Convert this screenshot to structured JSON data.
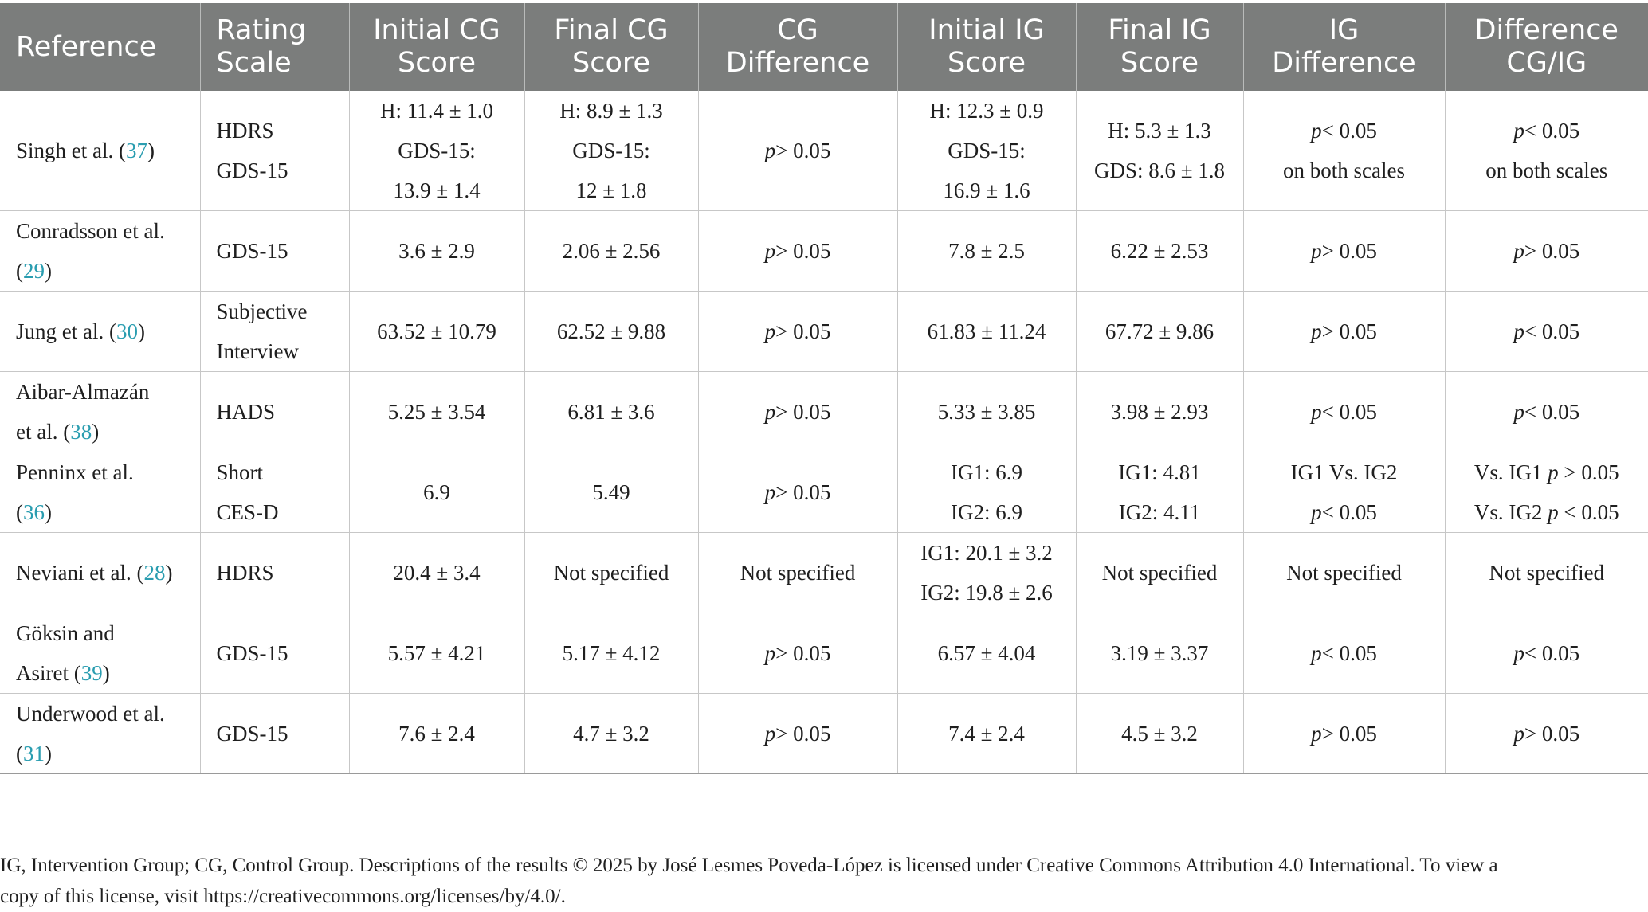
{
  "headers": [
    [
      "Reference"
    ],
    [
      "Rating",
      "Scale"
    ],
    [
      "Initial CG",
      "Score"
    ],
    [
      "Final CG",
      "Score"
    ],
    [
      "CG",
      "Difference"
    ],
    [
      "Initial IG",
      "Score"
    ],
    [
      "Final IG",
      "Score"
    ],
    [
      "IG",
      "Difference"
    ],
    [
      "Difference",
      "CG/IG"
    ]
  ],
  "rows": [
    {
      "ref_text": "Singh et al. (",
      "ref_num": "37",
      "ref_close": ")",
      "scale": [
        "HDRS",
        "GDS-15"
      ],
      "initial_cg": [
        "H: 11.4 ± 1.0",
        "GDS-15:",
        "13.9 ± 1.4"
      ],
      "final_cg": [
        "H: 8.9 ± 1.3",
        "GDS-15:",
        "12 ± 1.8"
      ],
      "cg_diff": "> 0.05",
      "initial_ig": [
        "H: 12.3 ± 0.9",
        "GDS-15:",
        "16.9 ± 1.6"
      ],
      "final_ig": [
        "H: 5.3 ± 1.3",
        "GDS: 8.6 ± 1.8"
      ],
      "ig_diff": [
        "< 0.05",
        "on both scales"
      ],
      "cgig_diff": [
        "< 0.05",
        "on both scales"
      ]
    },
    {
      "ref_text": "Conradsson et al.",
      "ref_text2": "(",
      "ref_num": "29",
      "ref_close": ")",
      "scale": [
        "GDS-15"
      ],
      "initial_cg": [
        "3.6 ± 2.9"
      ],
      "final_cg": [
        "2.06 ± 2.56"
      ],
      "cg_diff": "> 0.05",
      "initial_ig": [
        "7.8 ± 2.5"
      ],
      "final_ig": [
        "6.22 ± 2.53"
      ],
      "ig_diff": [
        "> 0.05"
      ],
      "cgig_diff": [
        "> 0.05"
      ]
    },
    {
      "ref_text": "Jung et al. (",
      "ref_num": "30",
      "ref_close": ")",
      "scale": [
        "Subjective",
        "Interview"
      ],
      "initial_cg": [
        "63.52 ± 10.79"
      ],
      "final_cg": [
        "62.52 ± 9.88"
      ],
      "cg_diff": "> 0.05",
      "initial_ig": [
        "61.83 ± 11.24"
      ],
      "final_ig": [
        "67.72 ± 9.86"
      ],
      "ig_diff": [
        "> 0.05"
      ],
      "cgig_diff": [
        "< 0.05"
      ]
    },
    {
      "ref_text": "Aibar-Almazán",
      "ref_text2": "et al. (",
      "ref_num": "38",
      "ref_close": ")",
      "scale": [
        "HADS"
      ],
      "initial_cg": [
        "5.25 ± 3.54"
      ],
      "final_cg": [
        "6.81 ± 3.6"
      ],
      "cg_diff": "> 0.05",
      "initial_ig": [
        "5.33 ± 3.85"
      ],
      "final_ig": [
        "3.98 ± 2.93"
      ],
      "ig_diff": [
        "< 0.05"
      ],
      "cgig_diff": [
        "< 0.05"
      ]
    },
    {
      "ref_text": "Penninx et al.",
      "ref_text2": "(",
      "ref_num": "36",
      "ref_close": ")",
      "scale": [
        "Short",
        "CES-D"
      ],
      "initial_cg": [
        "6.9"
      ],
      "final_cg": [
        "5.49"
      ],
      "cg_diff": "> 0.05",
      "initial_ig": [
        "IG1: 6.9",
        "IG2: 6.9"
      ],
      "final_ig": [
        "IG1: 4.81",
        "IG2: 4.11"
      ],
      "ig_diff_special": {
        "line1": "IG1 Vs. IG2",
        "line2": "< 0.05"
      },
      "cgig_special": {
        "l1_pre": "Vs. IG1 ",
        "l1_post": " > 0.05",
        "l2_pre": "Vs. IG2 ",
        "l2_post": " < 0.05"
      }
    },
    {
      "ref_text": "Neviani et al. (",
      "ref_num": "28",
      "ref_close": ")",
      "scale": [
        "HDRS"
      ],
      "initial_cg": [
        "20.4 ± 3.4"
      ],
      "final_cg": [
        "Not specified"
      ],
      "cg_diff_text": "Not specified",
      "initial_ig": [
        "IG1: 20.1 ± 3.2",
        "IG2: 19.8 ± 2.6"
      ],
      "final_ig": [
        "Not specified"
      ],
      "ig_diff_text": "Not specified",
      "cgig_diff_text": "Not specified"
    },
    {
      "ref_text": "Göksin and",
      "ref_text2": "Asiret (",
      "ref_num": "39",
      "ref_close": ")",
      "scale": [
        "GDS-15"
      ],
      "initial_cg": [
        "5.57 ± 4.21"
      ],
      "final_cg": [
        "5.17 ± 4.12"
      ],
      "cg_diff": "> 0.05",
      "initial_ig": [
        "6.57 ± 4.04"
      ],
      "final_ig": [
        "3.19 ± 3.37"
      ],
      "ig_diff": [
        "< 0.05"
      ],
      "cgig_diff": [
        "< 0.05"
      ]
    },
    {
      "ref_text": "Underwood et al.",
      "ref_text2": "(",
      "ref_num": "31",
      "ref_close": ")",
      "scale": [
        "GDS-15"
      ],
      "initial_cg": [
        "7.6 ± 2.4"
      ],
      "final_cg": [
        "4.7 ± 3.2"
      ],
      "cg_diff": "> 0.05",
      "initial_ig": [
        "7.4 ± 2.4"
      ],
      "final_ig": [
        "4.5 ± 3.2"
      ],
      "ig_diff": [
        "> 0.05"
      ],
      "cgig_diff": [
        "> 0.05"
      ]
    }
  ],
  "p_symbol": "p",
  "footnote": [
    "IG, Intervention Group; CG, Control Group. Descriptions of the results © 2025 by José Lesmes Poveda-López is licensed under Creative Commons Attribution 4.0 International. To view a",
    "copy of this license, visit https://creativecommons.org/licenses/by/4.0/."
  ]
}
